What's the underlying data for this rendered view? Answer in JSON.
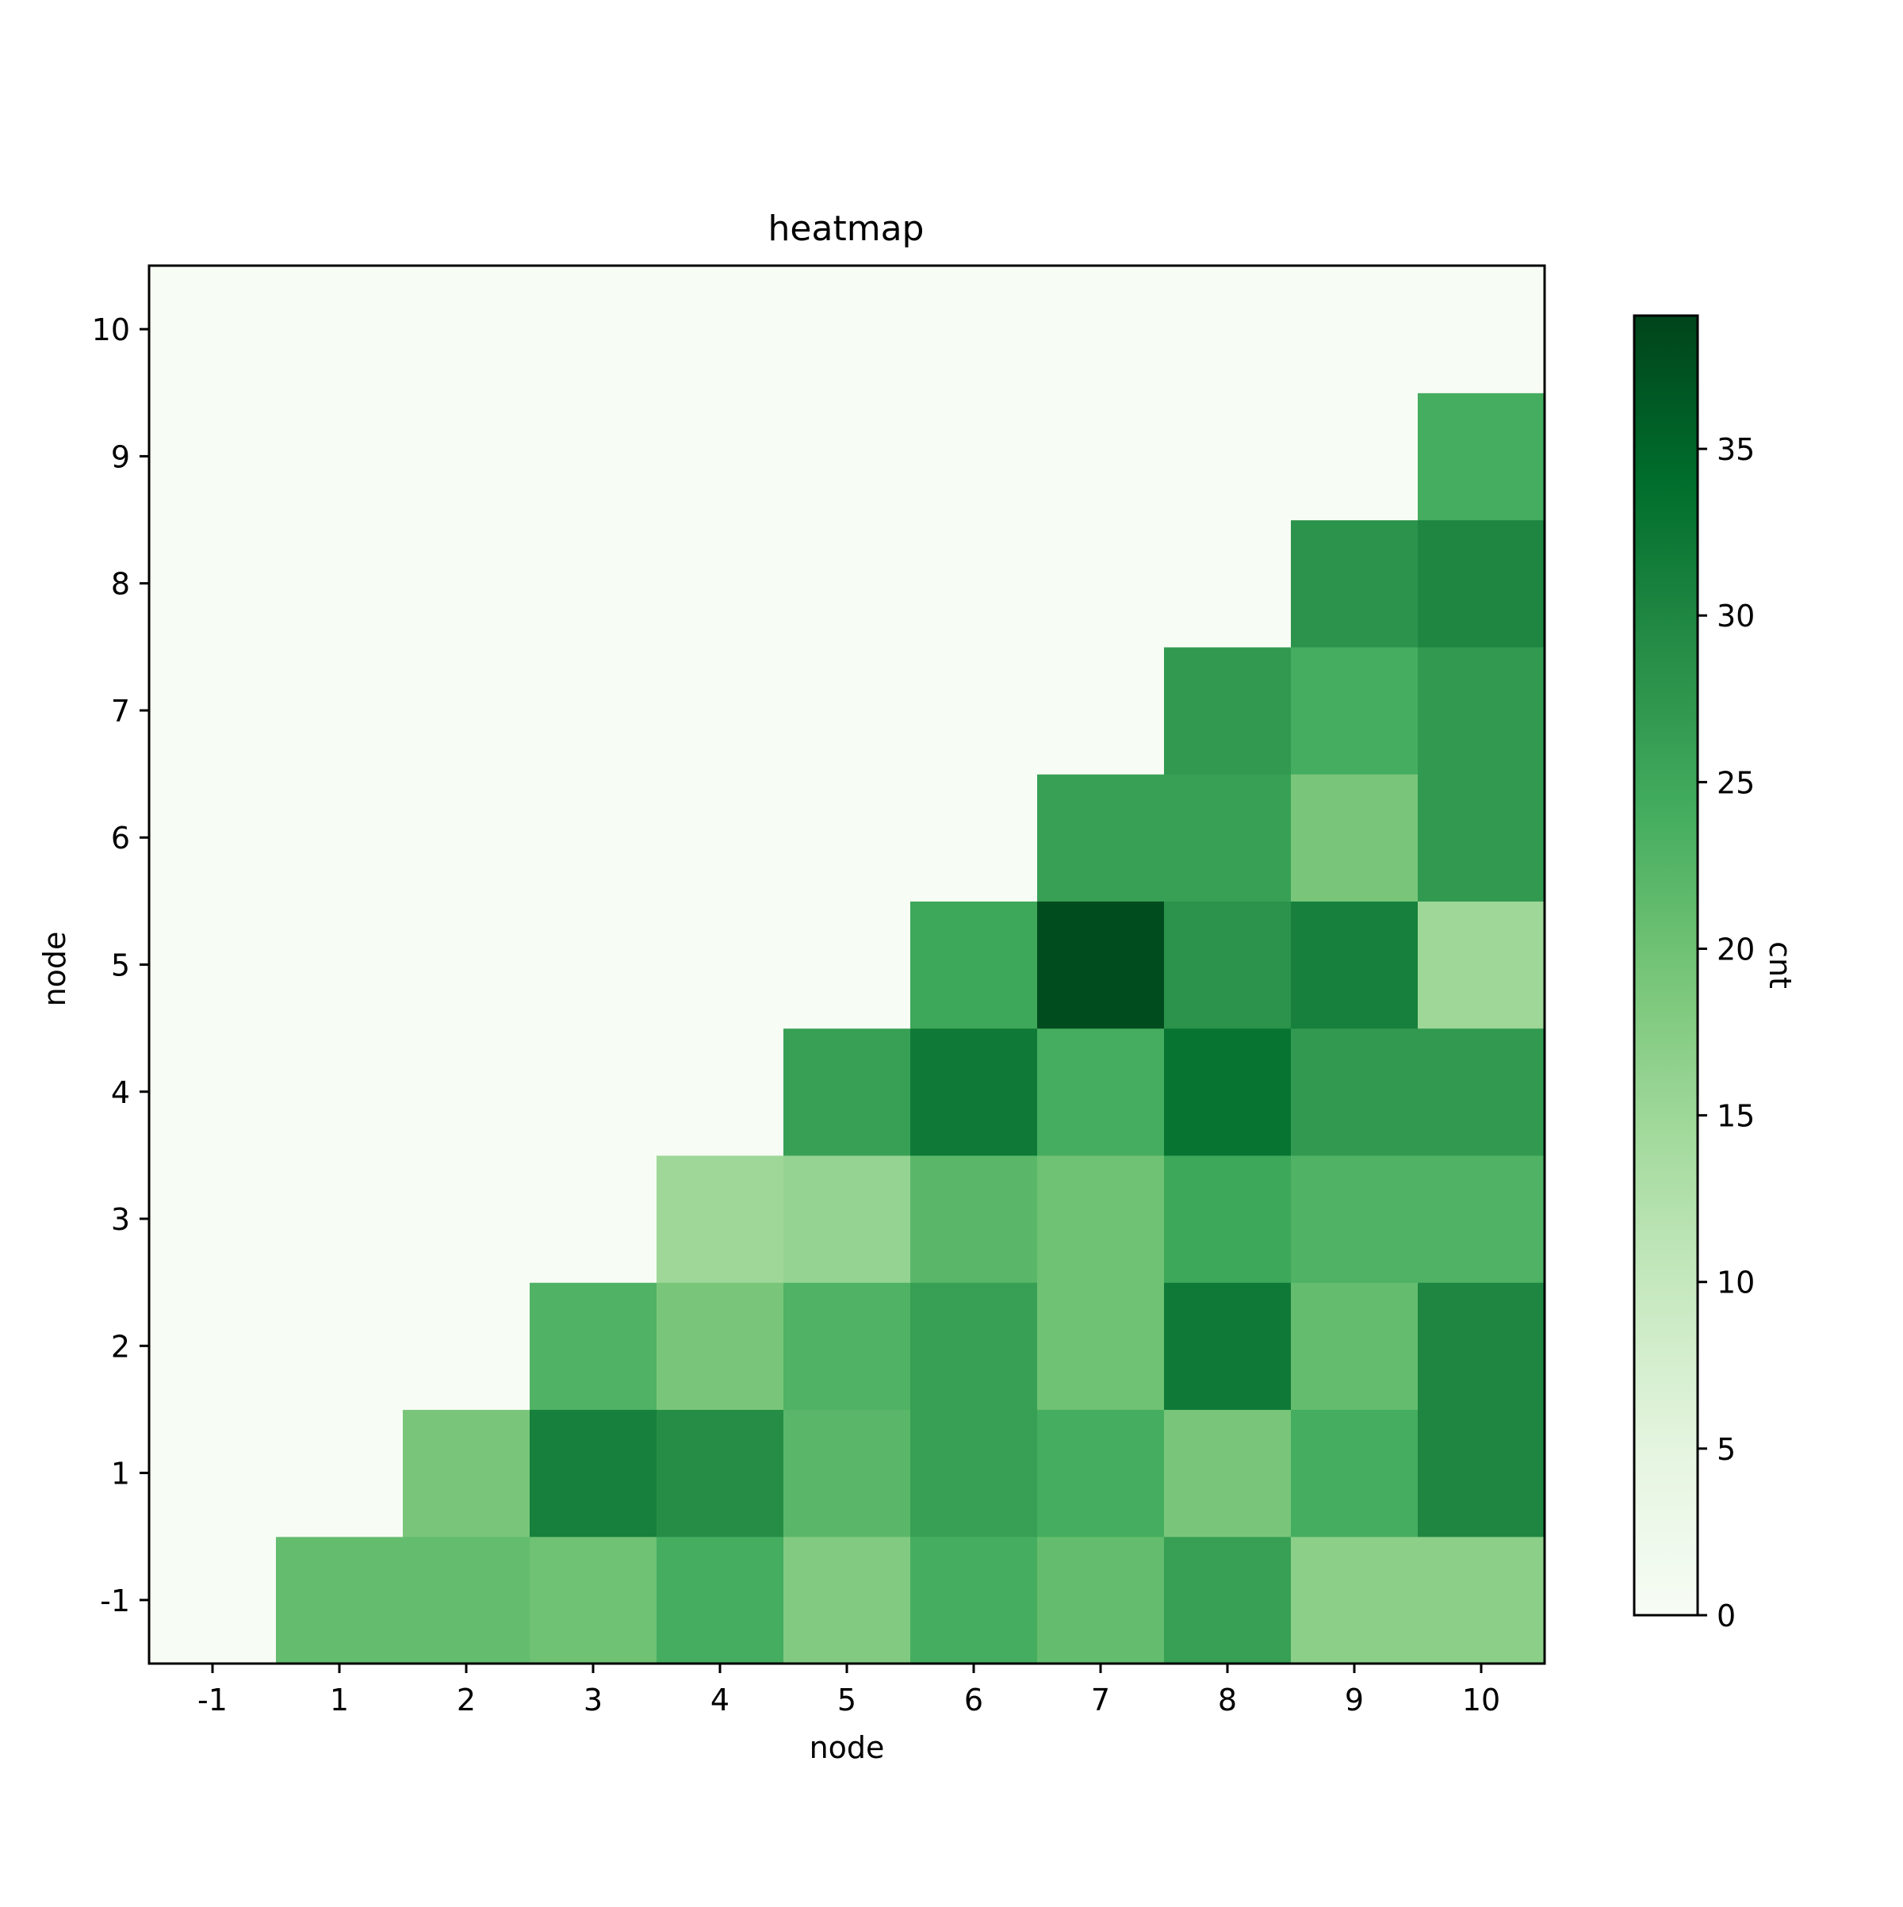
{
  "chart_data": {
    "type": "heatmap",
    "title": "heatmap",
    "xlabel": "node",
    "ylabel": "node",
    "x_categories": [
      "-1",
      "1",
      "2",
      "3",
      "4",
      "5",
      "6",
      "7",
      "8",
      "9",
      "10"
    ],
    "y_categories": [
      "-1",
      "1",
      "2",
      "3",
      "4",
      "5",
      "6",
      "7",
      "8",
      "9",
      "10"
    ],
    "values": [
      [
        0,
        21,
        21,
        20,
        24,
        18,
        24,
        21,
        26,
        17,
        17
      ],
      [
        0,
        0,
        19,
        31,
        29,
        22,
        26,
        24,
        19,
        24,
        30
      ],
      [
        0,
        0,
        0,
        23,
        19,
        23,
        26,
        20,
        32,
        21,
        30
      ],
      [
        0,
        0,
        0,
        0,
        15,
        16,
        22,
        20,
        25,
        23,
        23
      ],
      [
        0,
        0,
        0,
        0,
        0,
        26,
        32,
        24,
        33,
        27,
        27
      ],
      [
        0,
        0,
        0,
        0,
        0,
        0,
        25,
        38,
        28,
        31,
        15
      ],
      [
        0,
        0,
        0,
        0,
        0,
        0,
        0,
        26,
        26,
        19,
        27
      ],
      [
        0,
        0,
        0,
        0,
        0,
        0,
        0,
        0,
        27,
        24,
        27
      ],
      [
        0,
        0,
        0,
        0,
        0,
        0,
        0,
        0,
        0,
        28,
        30
      ],
      [
        0,
        0,
        0,
        0,
        0,
        0,
        0,
        0,
        0,
        0,
        24
      ],
      [
        0,
        0,
        0,
        0,
        0,
        0,
        0,
        0,
        0,
        0,
        0
      ]
    ],
    "colormap": "Greens",
    "colormap_stops": [
      "#f7fcf5",
      "#e5f5e0",
      "#c7e9c0",
      "#a1d99b",
      "#74c476",
      "#41ab5d",
      "#238b45",
      "#006d2c",
      "#00441b"
    ],
    "colorbar": {
      "label": "cnt",
      "range": [
        0,
        39
      ],
      "ticks": [
        0,
        5,
        10,
        15,
        20,
        25,
        30,
        35
      ]
    },
    "grid": false
  }
}
